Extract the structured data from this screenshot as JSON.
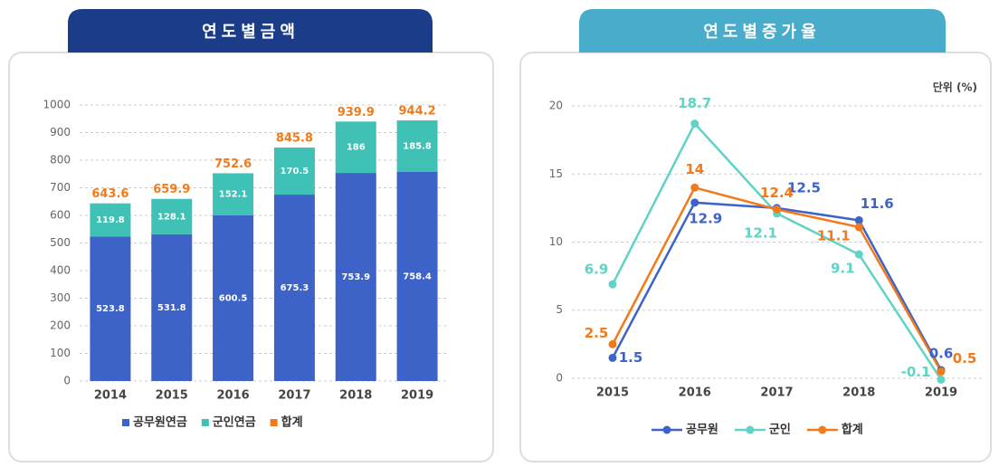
{
  "chart_data": [
    {
      "type": "bar",
      "title": "연도별금액",
      "categories": [
        "2014",
        "2015",
        "2016",
        "2017",
        "2018",
        "2019"
      ],
      "series": [
        {
          "name": "공무원연금",
          "color": "#3d63c9",
          "values": [
            523.8,
            531.8,
            600.5,
            675.3,
            753.9,
            758.4
          ]
        },
        {
          "name": "군인연금",
          "color": "#3fc2b5",
          "values": [
            119.8,
            128.1,
            152.1,
            170.5,
            186,
            185.8
          ]
        }
      ],
      "totals": {
        "name": "합계",
        "color": "#f27a1a",
        "values": [
          643.6,
          659.9,
          752.6,
          845.8,
          939.9,
          944.2
        ]
      },
      "ylim": [
        0,
        1000
      ],
      "yticks": [
        0,
        100,
        200,
        300,
        400,
        500,
        600,
        700,
        800,
        900,
        1000
      ],
      "grid": true
    },
    {
      "type": "line",
      "title": "연도별증가율",
      "unit": "단위 (%)",
      "categories": [
        "2015",
        "2016",
        "2017",
        "2018",
        "2019"
      ],
      "series": [
        {
          "name": "공무원",
          "color": "#3d63c9",
          "values": [
            1.5,
            12.9,
            12.5,
            11.6,
            0.6
          ]
        },
        {
          "name": "군인",
          "color": "#5fd3c4",
          "values": [
            6.9,
            18.7,
            12.1,
            9.1,
            -0.1
          ]
        },
        {
          "name": "합계",
          "color": "#f27a1a",
          "values": [
            2.5,
            14,
            12.4,
            11.1,
            0.5
          ]
        }
      ],
      "ylim": [
        -0.5,
        20.5
      ],
      "yticks": [
        0,
        5,
        10,
        15,
        20
      ],
      "grid": true
    }
  ]
}
